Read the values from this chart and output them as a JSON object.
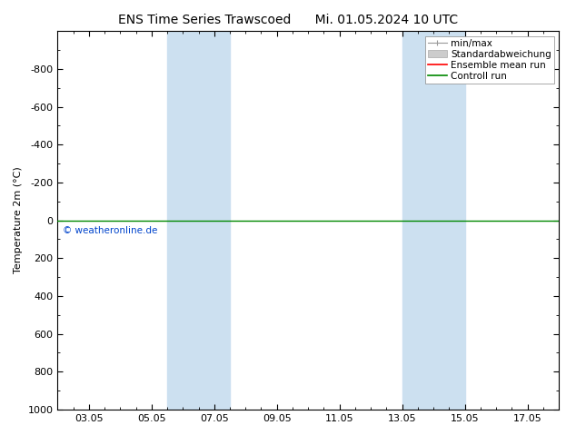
{
  "title_left": "ENS Time Series Trawscoed",
  "title_right": "Mi. 01.05.2024 10 UTC",
  "ylabel": "Temperature 2m (°C)",
  "x_tick_labels": [
    "03.05",
    "05.05",
    "07.05",
    "09.05",
    "11.05",
    "13.05",
    "15.05",
    "17.05"
  ],
  "shaded_bands": [
    {
      "xmin": 3.5,
      "xmax": 5.5
    },
    {
      "xmin": 11.0,
      "xmax": 13.0
    }
  ],
  "shade_color": "#cce0f0",
  "control_run_color": "#008800",
  "ensemble_mean_color": "#ff0000",
  "min_max_color": "#999999",
  "std_color": "#cccccc",
  "copyright_text": "© weatheronline.de",
  "copyright_color": "#0044cc",
  "bg_color": "#ffffff",
  "fontsize_title": 10,
  "fontsize_axis": 8,
  "fontsize_legend": 7.5
}
